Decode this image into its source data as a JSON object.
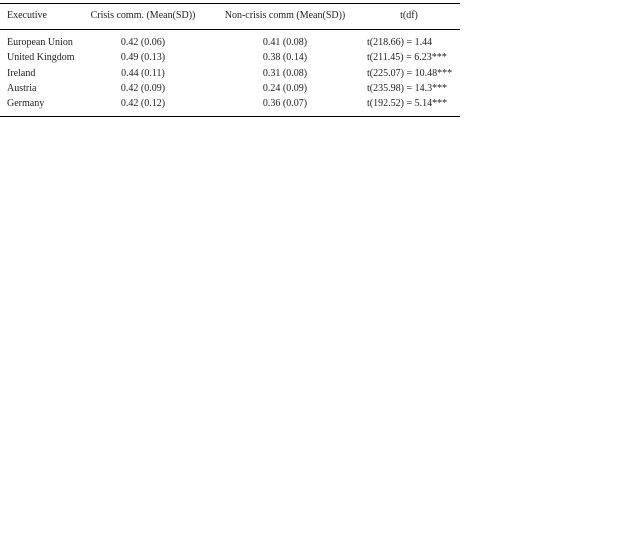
{
  "table": {
    "headers": [
      "Executive",
      "Crisis comm. (Mean(SD))",
      "Non-crisis comm (Mean(SD))",
      "t(df)"
    ],
    "rows": [
      [
        "European Union",
        "0.42 (0.06)",
        "0.41 (0.08)",
        "t(218.66) = 1.44"
      ],
      [
        "United Kingdom",
        "0.49 (0.13)",
        "0.38 (0.14)",
        "t(211.45) = 6.23***"
      ],
      [
        "Ireland",
        "0.44 (0.11)",
        "0.31 (0.08)",
        "t(225.07) = 10.48***"
      ],
      [
        "Austria",
        "0.42 (0.09)",
        "0.24 (0.09)",
        "t(235.98) = 14.3***"
      ],
      [
        "Germany",
        "0.42 (0.12)",
        "0.36 (0.07)",
        "t(192.52) = 5.14***"
      ]
    ]
  }
}
